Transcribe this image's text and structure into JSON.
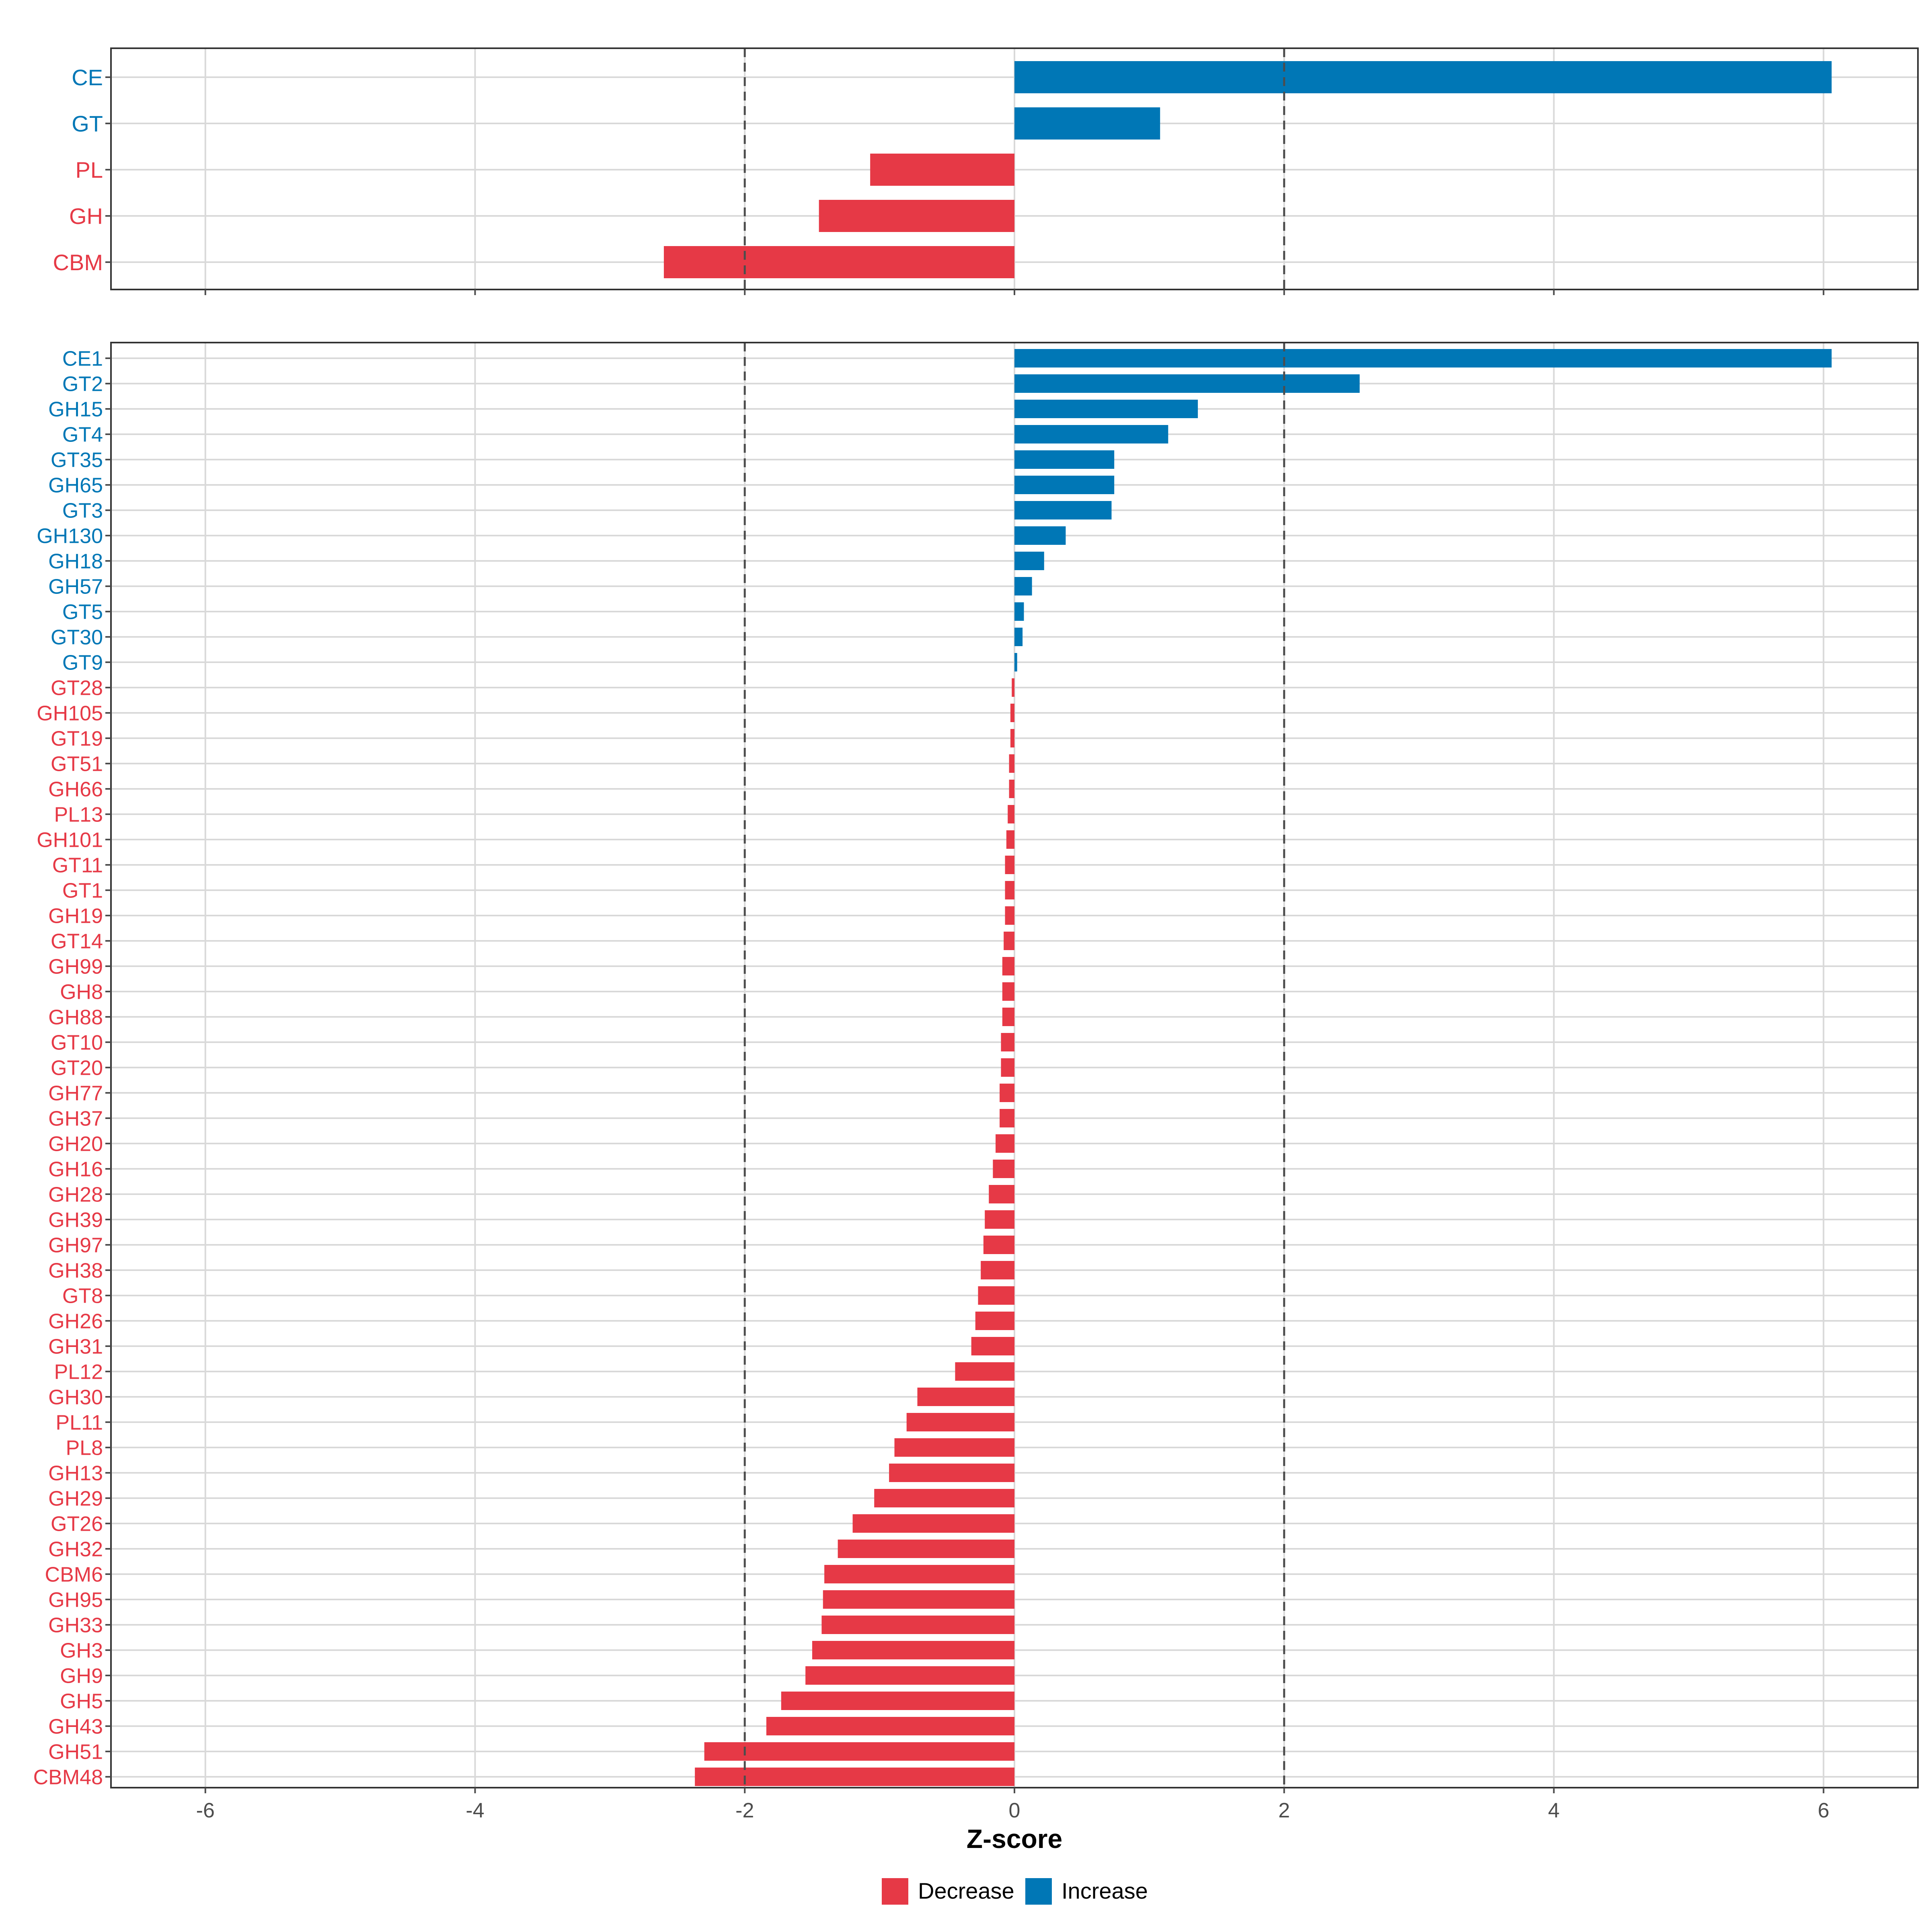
{
  "colors": {
    "decrease": "#E63946",
    "increase": "#0077B6",
    "grid": "#D9D9D9",
    "axis": "#4D4D4D",
    "panel_border": "#333333",
    "threshold": "#4D4D4D"
  },
  "legend": {
    "decrease_label": "Decrease",
    "increase_label": "Increase"
  },
  "xlabel": "Z-score",
  "chart_data": [
    {
      "type": "bar",
      "orientation": "horizontal",
      "panel": "family",
      "categories": [
        "CE",
        "GT",
        "PL",
        "GH",
        "CBM"
      ],
      "values": [
        6.06,
        1.08,
        -1.07,
        -1.45,
        -2.6
      ],
      "direction": [
        "Increase",
        "Increase",
        "Decrease",
        "Decrease",
        "Decrease"
      ],
      "xlim": [
        -6.7,
        6.7
      ],
      "xticks": [
        -6,
        -4,
        -2,
        0,
        2,
        4,
        6
      ],
      "reference_lines": [
        -2,
        2
      ],
      "xlabel": ""
    },
    {
      "type": "bar",
      "orientation": "horizontal",
      "panel": "subfamily",
      "categories": [
        "CE1",
        "GT2",
        "GH15",
        "GT4",
        "GT35",
        "GH65",
        "GT3",
        "GH130",
        "GH18",
        "GH57",
        "GT5",
        "GT30",
        "GT9",
        "GT28",
        "GH105",
        "GT19",
        "GT51",
        "GH66",
        "PL13",
        "GH101",
        "GT11",
        "GT1",
        "GH19",
        "GT14",
        "GH99",
        "GH8",
        "GH88",
        "GT10",
        "GT20",
        "GH77",
        "GH37",
        "GH20",
        "GH16",
        "GH28",
        "GH39",
        "GH97",
        "GH38",
        "GT8",
        "GH26",
        "GH31",
        "PL12",
        "GH30",
        "PL11",
        "PL8",
        "GH13",
        "GH29",
        "GT26",
        "GH32",
        "CBM6",
        "GH95",
        "GH33",
        "GH3",
        "GH9",
        "GH5",
        "GH43",
        "GH51",
        "CBM48"
      ],
      "values": [
        6.06,
        2.56,
        1.36,
        1.14,
        0.74,
        0.74,
        0.72,
        0.38,
        0.22,
        0.13,
        0.07,
        0.06,
        0.02,
        -0.02,
        -0.03,
        -0.03,
        -0.04,
        -0.04,
        -0.05,
        -0.06,
        -0.07,
        -0.07,
        -0.07,
        -0.08,
        -0.09,
        -0.09,
        -0.09,
        -0.1,
        -0.1,
        -0.11,
        -0.11,
        -0.14,
        -0.16,
        -0.19,
        -0.22,
        -0.23,
        -0.25,
        -0.27,
        -0.29,
        -0.32,
        -0.44,
        -0.72,
        -0.8,
        -0.89,
        -0.93,
        -1.04,
        -1.2,
        -1.31,
        -1.41,
        -1.42,
        -1.43,
        -1.5,
        -1.55,
        -1.73,
        -1.84,
        -2.3,
        -2.37
      ],
      "direction": [
        "Increase",
        "Increase",
        "Increase",
        "Increase",
        "Increase",
        "Increase",
        "Increase",
        "Increase",
        "Increase",
        "Increase",
        "Increase",
        "Increase",
        "Increase",
        "Decrease",
        "Decrease",
        "Decrease",
        "Decrease",
        "Decrease",
        "Decrease",
        "Decrease",
        "Decrease",
        "Decrease",
        "Decrease",
        "Decrease",
        "Decrease",
        "Decrease",
        "Decrease",
        "Decrease",
        "Decrease",
        "Decrease",
        "Decrease",
        "Decrease",
        "Decrease",
        "Decrease",
        "Decrease",
        "Decrease",
        "Decrease",
        "Decrease",
        "Decrease",
        "Decrease",
        "Decrease",
        "Decrease",
        "Decrease",
        "Decrease",
        "Decrease",
        "Decrease",
        "Decrease",
        "Decrease",
        "Decrease",
        "Decrease",
        "Decrease",
        "Decrease",
        "Decrease",
        "Decrease",
        "Decrease",
        "Decrease",
        "Decrease"
      ],
      "xlim": [
        -6.7,
        6.7
      ],
      "xticks": [
        -6,
        -4,
        -2,
        0,
        2,
        4,
        6
      ],
      "reference_lines": [
        -2,
        2
      ],
      "xlabel": "Z-score"
    }
  ]
}
